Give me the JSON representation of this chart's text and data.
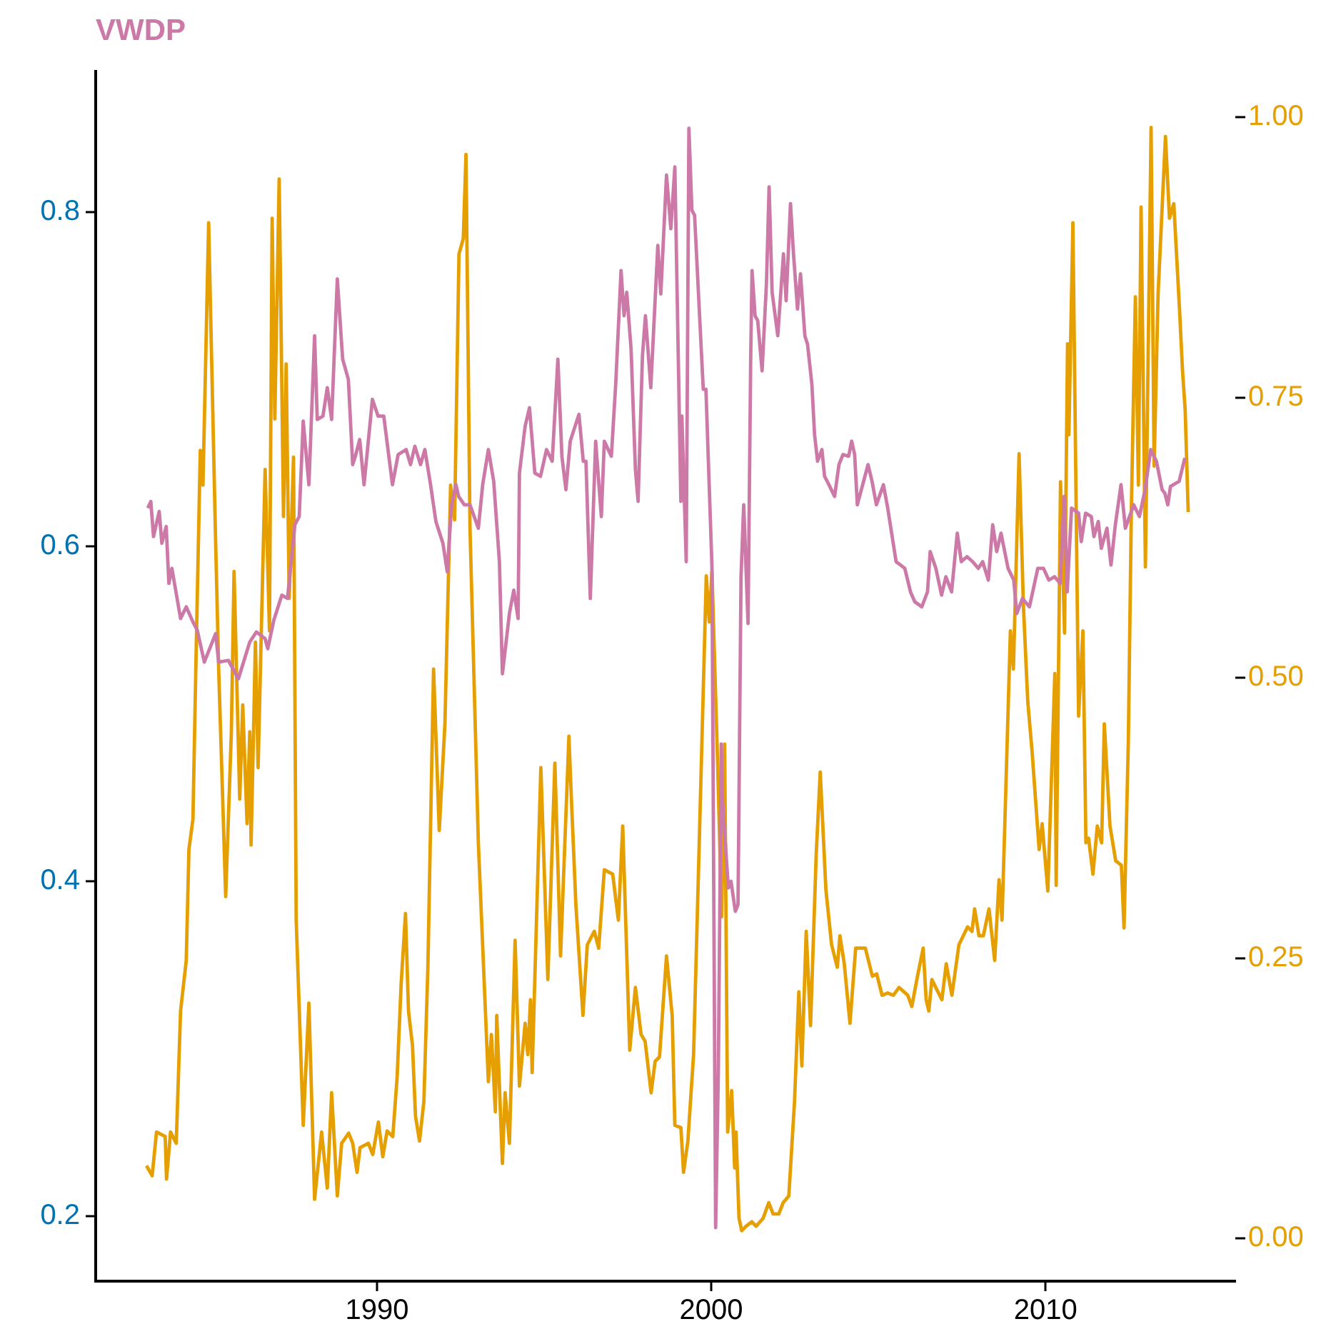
{
  "chart_data": {
    "type": "line",
    "title": "VWDP",
    "marker": "none",
    "xlim": [
      1981.58,
      2015.68
    ],
    "xticks": [
      1990,
      2000,
      2010
    ],
    "ylim": [
      0.161,
      0.884
    ],
    "yticks": [
      0.2,
      0.4,
      0.6,
      0.8
    ],
    "y2lim": [
      -0.038,
      1.041
    ],
    "y2ticks": [
      {
        "value": 0,
        "label": "0.00"
      },
      {
        "value": 0.25,
        "label": "0.25"
      },
      {
        "value": 0.5,
        "label": "0.50"
      },
      {
        "value": 0.75,
        "label": "0.75"
      },
      {
        "value": 1,
        "label": "1.00"
      }
    ],
    "series": [
      {
        "color": "#cc79a7",
        "x": [
          1983.14,
          1983.23,
          1983.31,
          1983.48,
          1983.56,
          1983.69,
          1983.77,
          1983.86,
          1984.12,
          1984.29,
          1984.49,
          1984.62,
          1984.83,
          1985.17,
          1985.26,
          1985.55,
          1985.85,
          1986.19,
          1986.39,
          1986.65,
          1986.73,
          1986.91,
          1987.15,
          1987.32,
          1987.54,
          1987.67,
          1987.79,
          1987.96,
          1988.13,
          1988.21,
          1988.38,
          1988.51,
          1988.64,
          1988.81,
          1988.97,
          1989.14,
          1989.27,
          1989.35,
          1989.48,
          1989.61,
          1989.86,
          1990.03,
          1990.2,
          1990.46,
          1990.63,
          1990.87,
          1991.0,
          1991.13,
          1991.3,
          1991.43,
          1991.6,
          1991.76,
          1991.97,
          1992.1,
          1992.23,
          1992.36,
          1992.44,
          1992.61,
          1992.78,
          1993.03,
          1993.16,
          1993.33,
          1993.49,
          1993.66,
          1993.75,
          1993.96,
          1994.09,
          1994.22,
          1994.26,
          1994.43,
          1994.56,
          1994.72,
          1994.89,
          1995.07,
          1995.24,
          1995.41,
          1995.53,
          1995.65,
          1995.78,
          1996.04,
          1996.17,
          1996.25,
          1996.38,
          1996.54,
          1996.71,
          1996.8,
          1997.01,
          1997.14,
          1997.3,
          1997.39,
          1997.47,
          1997.6,
          1997.73,
          1997.81,
          1997.94,
          1998.03,
          1998.19,
          1998.4,
          1998.49,
          1998.66,
          1998.79,
          1998.91,
          1999.09,
          1999.12,
          1999.25,
          1999.33,
          1999.42,
          1999.5,
          1999.76,
          1999.84,
          2000.02,
          2000.13,
          2000.21,
          2000.3,
          2000.34,
          2000.51,
          2000.59,
          2000.72,
          2000.8,
          2000.89,
          2000.97,
          2001.1,
          2001.18,
          2001.22,
          2001.31,
          2001.39,
          2001.52,
          2001.65,
          2001.73,
          2001.82,
          2001.99,
          2002.16,
          2002.24,
          2002.37,
          2002.46,
          2002.58,
          2002.67,
          2002.8,
          2002.88,
          2003.01,
          2003.09,
          2003.18,
          2003.31,
          2003.39,
          2003.52,
          2003.69,
          2003.82,
          2003.94,
          2004.11,
          2004.2,
          2004.29,
          2004.37,
          2004.69,
          2004.81,
          2004.94,
          2005.15,
          2005.28,
          2005.53,
          2005.66,
          2005.79,
          2005.96,
          2006.09,
          2006.3,
          2006.47,
          2006.55,
          2006.72,
          2006.89,
          2007.02,
          2007.19,
          2007.36,
          2007.48,
          2007.65,
          2007.82,
          2007.99,
          2008.12,
          2008.29,
          2008.42,
          2008.54,
          2008.67,
          2008.88,
          2009.05,
          2009.14,
          2009.31,
          2009.52,
          2009.77,
          2009.94,
          2010.1,
          2010.27,
          2010.44,
          2010.56,
          2010.65,
          2010.78,
          2010.99,
          2011.07,
          2011.2,
          2011.37,
          2011.45,
          2011.58,
          2011.67,
          2011.84,
          2011.96,
          2012.09,
          2012.26,
          2012.39,
          2012.64,
          2012.81,
          2012.98,
          2013.15,
          2013.32,
          2013.49,
          2013.57,
          2013.66,
          2013.74,
          2014.0,
          2014.17
        ],
        "values": [
          0.623,
          0.627,
          0.606,
          0.621,
          0.602,
          0.612,
          0.578,
          0.587,
          0.557,
          0.564,
          0.555,
          0.55,
          0.531,
          0.548,
          0.531,
          0.532,
          0.521,
          0.543,
          0.549,
          0.545,
          0.539,
          0.556,
          0.571,
          0.569,
          0.613,
          0.618,
          0.675,
          0.637,
          0.726,
          0.676,
          0.678,
          0.695,
          0.676,
          0.76,
          0.712,
          0.7,
          0.649,
          0.654,
          0.664,
          0.637,
          0.688,
          0.678,
          0.678,
          0.637,
          0.655,
          0.658,
          0.649,
          0.66,
          0.649,
          0.658,
          0.637,
          0.615,
          0.602,
          0.585,
          0.625,
          0.637,
          0.63,
          0.625,
          0.625,
          0.611,
          0.637,
          0.658,
          0.639,
          0.591,
          0.524,
          0.56,
          0.574,
          0.557,
          0.644,
          0.672,
          0.683,
          0.644,
          0.642,
          0.658,
          0.651,
          0.712,
          0.654,
          0.634,
          0.663,
          0.679,
          0.651,
          0.651,
          0.569,
          0.663,
          0.618,
          0.663,
          0.654,
          0.697,
          0.765,
          0.738,
          0.752,
          0.718,
          0.646,
          0.627,
          0.714,
          0.738,
          0.695,
          0.78,
          0.751,
          0.822,
          0.79,
          0.827,
          0.627,
          0.678,
          0.591,
          0.85,
          0.801,
          0.798,
          0.694,
          0.694,
          0.588,
          0.193,
          0.285,
          0.482,
          0.447,
          0.396,
          0.4,
          0.382,
          0.386,
          0.582,
          0.625,
          0.554,
          0.714,
          0.765,
          0.738,
          0.735,
          0.705,
          0.757,
          0.815,
          0.752,
          0.726,
          0.775,
          0.747,
          0.805,
          0.775,
          0.742,
          0.763,
          0.726,
          0.721,
          0.697,
          0.667,
          0.651,
          0.658,
          0.642,
          0.637,
          0.63,
          0.649,
          0.655,
          0.654,
          0.663,
          0.655,
          0.625,
          0.649,
          0.639,
          0.625,
          0.637,
          0.623,
          0.591,
          0.589,
          0.587,
          0.573,
          0.567,
          0.564,
          0.573,
          0.597,
          0.587,
          0.571,
          0.582,
          0.573,
          0.608,
          0.591,
          0.594,
          0.591,
          0.587,
          0.591,
          0.58,
          0.613,
          0.597,
          0.608,
          0.587,
          0.58,
          0.56,
          0.569,
          0.564,
          0.587,
          0.587,
          0.58,
          0.582,
          0.578,
          0.63,
          0.573,
          0.623,
          0.62,
          0.603,
          0.62,
          0.618,
          0.606,
          0.615,
          0.599,
          0.611,
          0.589,
          0.613,
          0.637,
          0.611,
          0.625,
          0.618,
          0.634,
          0.658,
          0.651,
          0.634,
          0.632,
          0.625,
          0.636,
          0.639,
          0.653
        ]
      },
      {
        "color": "#e69f00",
        "axis": "y2",
        "x": [
          1983.1,
          1983.27,
          1983.4,
          1983.66,
          1983.7,
          1983.82,
          1983.99,
          1984.12,
          1984.29,
          1984.37,
          1984.49,
          1984.58,
          1984.71,
          1984.79,
          1984.96,
          1985.17,
          1985.26,
          1985.47,
          1985.64,
          1985.72,
          1985.89,
          1985.98,
          1986.11,
          1986.19,
          1986.23,
          1986.36,
          1986.44,
          1986.65,
          1986.78,
          1986.86,
          1986.94,
          1987.07,
          1987.2,
          1987.28,
          1987.37,
          1987.5,
          1987.58,
          1987.79,
          1987.96,
          1988.13,
          1988.34,
          1988.51,
          1988.64,
          1988.81,
          1988.94,
          1989.15,
          1989.27,
          1989.4,
          1989.49,
          1989.74,
          1989.87,
          1990.04,
          1990.17,
          1990.3,
          1990.47,
          1990.6,
          1990.72,
          1990.85,
          1990.94,
          1991.06,
          1991.15,
          1991.27,
          1991.4,
          1991.52,
          1991.69,
          1991.86,
          1992.03,
          1992.2,
          1992.32,
          1992.45,
          1992.58,
          1992.66,
          1992.78,
          1993.03,
          1993.33,
          1993.42,
          1993.54,
          1993.58,
          1993.75,
          1993.83,
          1993.96,
          1994.13,
          1994.26,
          1994.43,
          1994.51,
          1994.59,
          1994.64,
          1994.9,
          1995.11,
          1995.32,
          1995.49,
          1995.74,
          1995.82,
          1995.95,
          1996.16,
          1996.29,
          1996.5,
          1996.63,
          1996.8,
          1997.05,
          1997.22,
          1997.35,
          1997.56,
          1997.73,
          1997.9,
          1998.02,
          1998.2,
          1998.32,
          1998.45,
          1998.66,
          1998.83,
          1998.91,
          1999.09,
          1999.17,
          1999.3,
          1999.47,
          1999.64,
          1999.85,
          1999.94,
          2000.02,
          2000.19,
          2000.31,
          2000.4,
          2000.49,
          2000.61,
          2000.7,
          2000.74,
          2000.83,
          2000.91,
          2001.04,
          2001.21,
          2001.34,
          2001.55,
          2001.72,
          2001.85,
          2002.02,
          2002.15,
          2002.32,
          2002.49,
          2002.62,
          2002.71,
          2002.84,
          2002.97,
          2003.14,
          2003.26,
          2003.43,
          2003.6,
          2003.77,
          2003.85,
          2003.98,
          2004.15,
          2004.32,
          2004.61,
          2004.82,
          2004.95,
          2005.11,
          2005.28,
          2005.45,
          2005.62,
          2005.88,
          2006.0,
          2006.17,
          2006.34,
          2006.43,
          2006.51,
          2006.6,
          2006.9,
          2007.03,
          2007.2,
          2007.41,
          2007.67,
          2007.8,
          2007.88,
          2008.01,
          2008.14,
          2008.31,
          2008.48,
          2008.61,
          2008.7,
          2008.95,
          2009.04,
          2009.21,
          2009.34,
          2009.47,
          2009.6,
          2009.81,
          2009.9,
          2010.07,
          2010.28,
          2010.32,
          2010.45,
          2010.57,
          2010.66,
          2010.7,
          2010.82,
          2010.99,
          2011.12,
          2011.21,
          2011.29,
          2011.42,
          2011.55,
          2011.68,
          2011.76,
          2011.93,
          2012.1,
          2012.27,
          2012.35,
          2012.48,
          2012.57,
          2012.69,
          2012.78,
          2012.86,
          2012.99,
          2013.16,
          2013.25,
          2013.37,
          2013.59,
          2013.71,
          2013.84,
          2014.01,
          2014.1,
          2014.18,
          2014.27
        ],
        "values": [
          0.065,
          0.056,
          0.095,
          0.091,
          0.053,
          0.095,
          0.085,
          0.203,
          0.248,
          0.347,
          0.374,
          0.514,
          0.703,
          0.672,
          0.906,
          0.62,
          0.508,
          0.305,
          0.452,
          0.595,
          0.392,
          0.476,
          0.37,
          0.452,
          0.351,
          0.532,
          0.42,
          0.686,
          0.542,
          0.91,
          0.731,
          0.945,
          0.644,
          0.78,
          0.571,
          0.697,
          0.284,
          0.101,
          0.21,
          0.035,
          0.095,
          0.045,
          0.13,
          0.038,
          0.085,
          0.094,
          0.085,
          0.059,
          0.081,
          0.085,
          0.075,
          0.104,
          0.073,
          0.096,
          0.091,
          0.144,
          0.227,
          0.29,
          0.203,
          0.172,
          0.109,
          0.087,
          0.122,
          0.242,
          0.508,
          0.364,
          0.459,
          0.672,
          0.641,
          0.878,
          0.892,
          0.967,
          0.634,
          0.353,
          0.14,
          0.182,
          0.113,
          0.199,
          0.067,
          0.13,
          0.085,
          0.266,
          0.136,
          0.192,
          0.164,
          0.213,
          0.148,
          0.42,
          0.231,
          0.424,
          0.252,
          0.448,
          0.388,
          0.297,
          0.199,
          0.262,
          0.274,
          0.259,
          0.329,
          0.325,
          0.284,
          0.368,
          0.168,
          0.224,
          0.182,
          0.176,
          0.13,
          0.158,
          0.162,
          0.252,
          0.199,
          0.101,
          0.099,
          0.059,
          0.087,
          0.164,
          0.353,
          0.591,
          0.55,
          0.595,
          0.424,
          0.287,
          0.441,
          0.095,
          0.132,
          0.063,
          0.095,
          0.018,
          0.007,
          0.011,
          0.015,
          0.011,
          0.018,
          0.032,
          0.022,
          0.022,
          0.032,
          0.038,
          0.122,
          0.22,
          0.154,
          0.274,
          0.19,
          0.343,
          0.416,
          0.311,
          0.262,
          0.242,
          0.27,
          0.245,
          0.192,
          0.259,
          0.259,
          0.234,
          0.236,
          0.217,
          0.219,
          0.217,
          0.224,
          0.217,
          0.207,
          0.234,
          0.259,
          0.213,
          0.203,
          0.231,
          0.213,
          0.245,
          0.217,
          0.262,
          0.278,
          0.274,
          0.294,
          0.27,
          0.27,
          0.294,
          0.248,
          0.32,
          0.284,
          0.542,
          0.508,
          0.7,
          0.564,
          0.479,
          0.434,
          0.347,
          0.37,
          0.31,
          0.504,
          0.315,
          0.675,
          0.54,
          0.798,
          0.717,
          0.906,
          0.466,
          0.542,
          0.353,
          0.357,
          0.325,
          0.368,
          0.353,
          0.459,
          0.368,
          0.337,
          0.333,
          0.277,
          0.445,
          0.652,
          0.84,
          0.672,
          0.92,
          0.599,
          0.991,
          0.689,
          0.843,
          0.983,
          0.91,
          0.923,
          0.829,
          0.774,
          0.739,
          0.648
        ]
      }
    ]
  }
}
